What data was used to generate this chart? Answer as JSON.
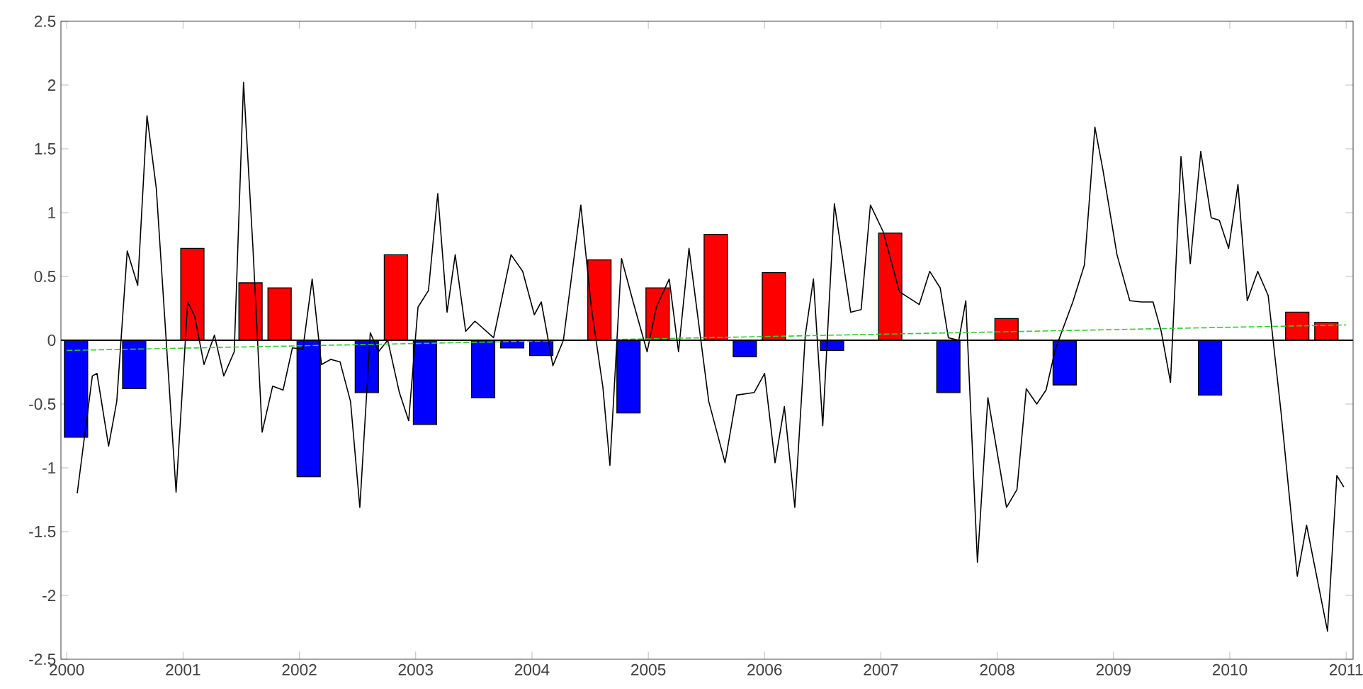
{
  "chart_data": {
    "type": "bar",
    "xlim": [
      1999.95,
      2011.06
    ],
    "ylim": [
      -2.5,
      2.5
    ],
    "xticks": [
      2000,
      2001,
      2002,
      2003,
      2004,
      2005,
      2006,
      2007,
      2008,
      2009,
      2010,
      2011
    ],
    "yticks": [
      -2.5,
      -2,
      -1.5,
      -1,
      -0.5,
      0,
      0.5,
      1,
      1.5,
      2,
      2.5
    ],
    "grid": false,
    "ref_lines": [
      {
        "axis": "y",
        "value": 0,
        "color": "#000000"
      }
    ],
    "series": [
      {
        "x": [
          2000.08,
          2000.58,
          2001.08,
          2001.58,
          2001.83,
          2002.08,
          2002.58,
          2002.83,
          2003.08,
          2003.58,
          2003.83,
          2004.08,
          2004.58,
          2004.83,
          2005.08,
          2005.58,
          2005.83,
          2006.08,
          2006.58,
          2007.08,
          2007.58,
          2008.08,
          2008.58,
          2009.83,
          2010.58,
          2010.83
        ],
        "values": [
          -0.76,
          -0.38,
          0.72,
          0.45,
          0.41,
          -1.07,
          -0.41,
          0.67,
          -0.66,
          -0.45,
          -0.06,
          -0.12,
          0.63,
          -0.57,
          0.41,
          0.83,
          -0.13,
          0.53,
          -0.08,
          0.84,
          -0.41,
          0.17,
          -0.35,
          -0.43,
          0.22,
          0.14
        ],
        "colors": [
          "#0000ff",
          "#0000ff",
          "#ff0000",
          "#ff0000",
          "#ff0000",
          "#0000ff",
          "#0000ff",
          "#ff0000",
          "#0000ff",
          "#0000ff",
          "#0000ff",
          "#0000ff",
          "#ff0000",
          "#0000ff",
          "#ff0000",
          "#ff0000",
          "#0000ff",
          "#ff0000",
          "#0000ff",
          "#ff0000",
          "#0000ff",
          "#ff0000",
          "#0000ff",
          "#0000ff",
          "#ff0000",
          "#ff0000"
        ]
      },
      {
        "type": "line",
        "color": "#000000",
        "line_style": "solid",
        "x": [
          2000.09,
          2000.22,
          2000.26,
          2000.36,
          2000.43,
          2000.52,
          2000.61,
          2000.69,
          2000.77,
          2000.85,
          2000.94,
          2001.04,
          2001.1,
          2001.18,
          2001.27,
          2001.35,
          2001.44,
          2001.52,
          2001.6,
          2001.68,
          2001.77,
          2001.86,
          2001.94,
          2002.03,
          2002.11,
          2002.19,
          2002.27,
          2002.35,
          2002.44,
          2002.52,
          2002.61,
          2002.68,
          2002.76,
          2002.86,
          2002.94,
          2003.02,
          2003.11,
          2003.19,
          2003.27,
          2003.34,
          2003.43,
          2003.51,
          2003.67,
          2003.82,
          2003.92,
          2004.02,
          2004.08,
          2004.18,
          2004.27,
          2004.42,
          2004.51,
          2004.61,
          2004.67,
          2004.77,
          2004.87,
          2004.99,
          2005.07,
          2005.18,
          2005.26,
          2005.35,
          2005.52,
          2005.66,
          2005.76,
          2005.91,
          2006.0,
          2006.09,
          2006.17,
          2006.26,
          2006.35,
          2006.42,
          2006.5,
          2006.6,
          2006.74,
          2006.83,
          2006.91,
          2007.02,
          2007.16,
          2007.33,
          2007.42,
          2007.51,
          2007.58,
          2007.67,
          2007.73,
          2007.83,
          2007.92,
          2008.08,
          2008.17,
          2008.25,
          2008.34,
          2008.42,
          2008.5,
          2008.65,
          2008.75,
          2008.84,
          2008.91,
          2009.03,
          2009.14,
          2009.24,
          2009.34,
          2009.41,
          2009.49,
          2009.58,
          2009.66,
          2009.75,
          2009.84,
          2009.91,
          2009.99,
          2010.07,
          2010.15,
          2010.24,
          2010.33,
          2010.44,
          2010.58,
          2010.66,
          2010.84,
          2010.92,
          2010.98
        ],
        "values": [
          -1.2,
          -0.28,
          -0.26,
          -0.83,
          -0.48,
          0.7,
          0.43,
          1.76,
          1.19,
          0.07,
          -1.19,
          0.3,
          0.19,
          -0.19,
          0.04,
          -0.28,
          -0.09,
          2.02,
          0.74,
          -0.72,
          -0.36,
          -0.39,
          -0.06,
          -0.07,
          0.48,
          -0.19,
          -0.15,
          -0.17,
          -0.48,
          -1.31,
          0.06,
          -0.09,
          0.0,
          -0.41,
          -0.63,
          0.26,
          0.39,
          1.15,
          0.22,
          0.67,
          0.07,
          0.15,
          0.02,
          0.67,
          0.54,
          0.2,
          0.3,
          -0.2,
          0.0,
          1.06,
          0.26,
          -0.37,
          -0.98,
          0.64,
          0.3,
          -0.09,
          0.26,
          0.48,
          -0.09,
          0.72,
          -0.48,
          -0.96,
          -0.43,
          -0.41,
          -0.26,
          -0.96,
          -0.52,
          -1.31,
          0.04,
          0.48,
          -0.67,
          1.07,
          0.22,
          0.24,
          1.06,
          0.85,
          0.38,
          0.28,
          0.54,
          0.41,
          0.02,
          0.0,
          0.31,
          -1.74,
          -0.45,
          -1.31,
          -1.17,
          -0.38,
          -0.5,
          -0.39,
          -0.07,
          0.3,
          0.59,
          1.67,
          1.33,
          0.67,
          0.31,
          0.3,
          0.3,
          0.07,
          -0.33,
          1.44,
          0.6,
          1.48,
          0.96,
          0.94,
          0.72,
          1.22,
          0.31,
          0.54,
          0.35,
          -0.56,
          -1.85,
          -1.45,
          -2.28,
          -1.06,
          -1.15
        ]
      },
      {
        "type": "line",
        "color": "#33cc33",
        "line_style": "dashed",
        "x": [
          2000,
          2011
        ],
        "values": [
          -0.08,
          0.12
        ]
      }
    ]
  }
}
